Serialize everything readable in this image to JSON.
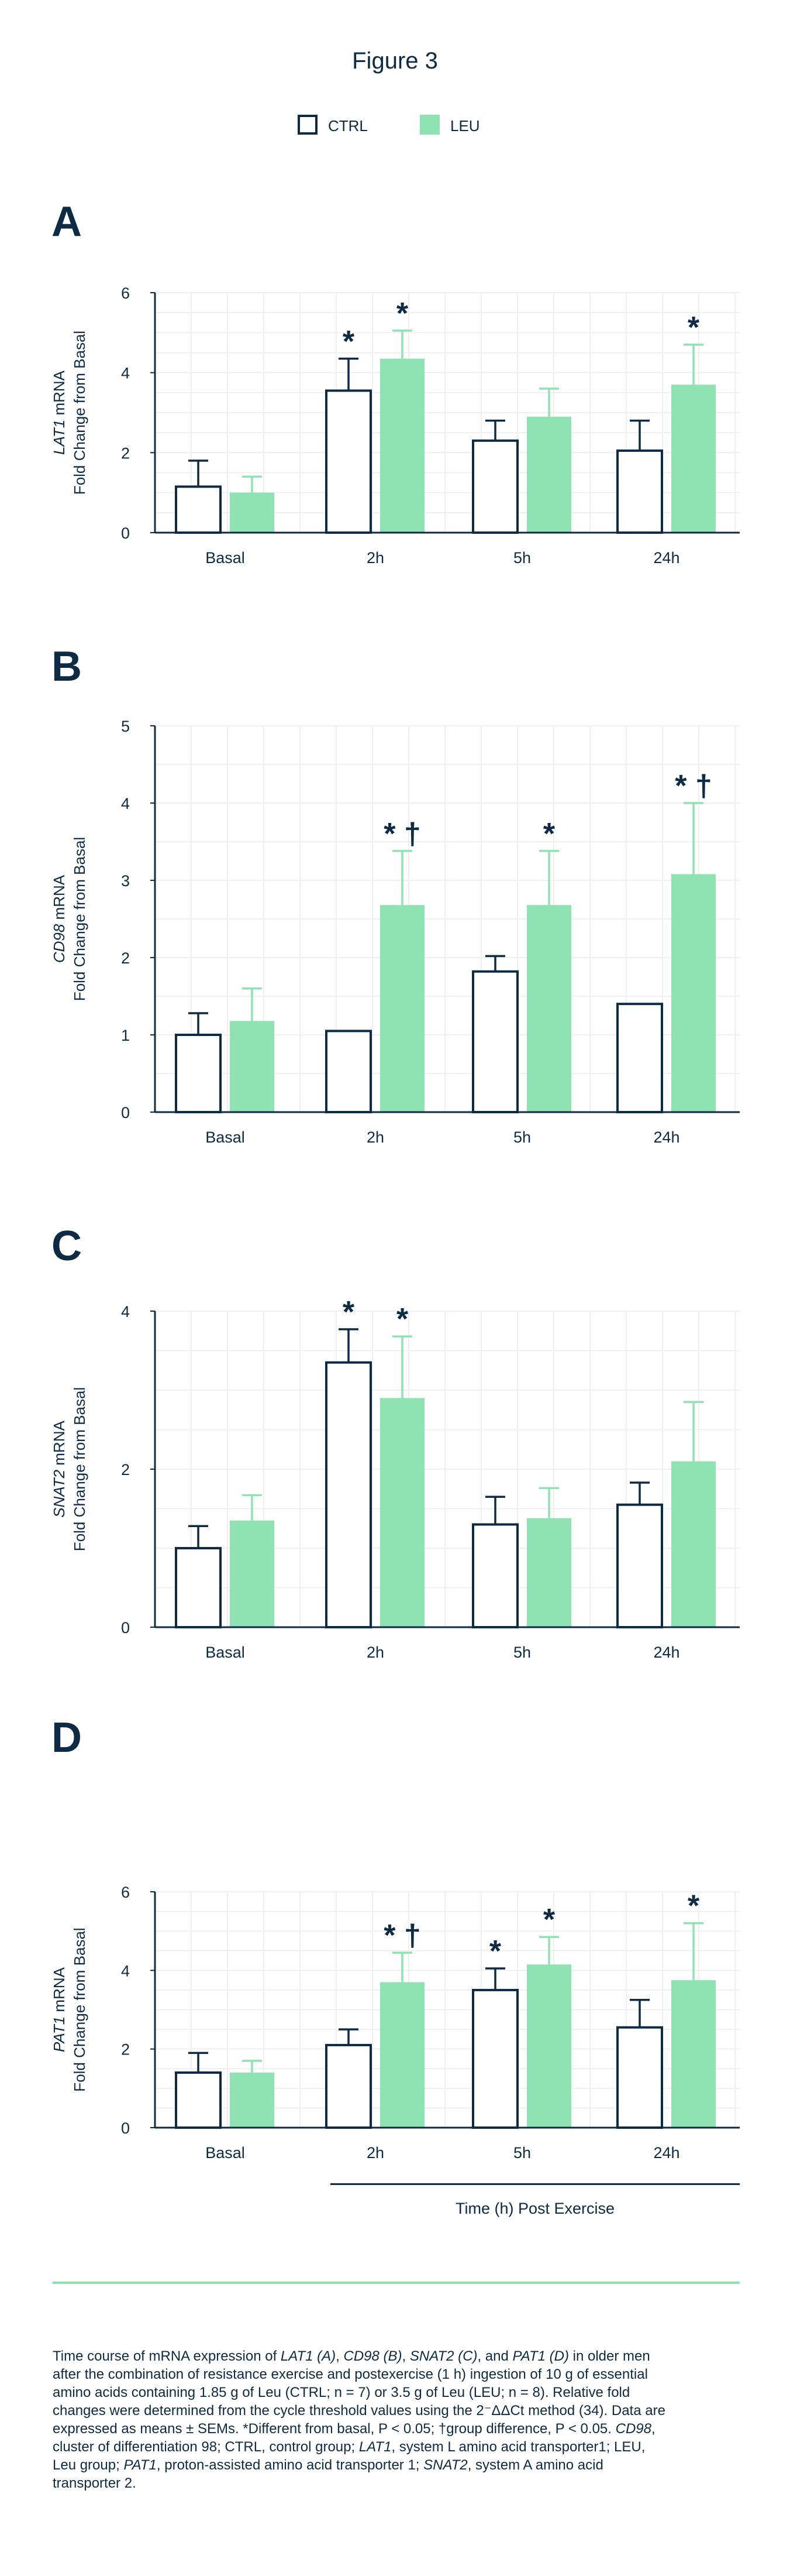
{
  "figure_title": "Figure 3",
  "colors": {
    "ctrl_fill": "#ffffff",
    "ctrl_stroke": "#0d2b45",
    "leu_fill": "#8fe3b2",
    "leu_error": "#8fe3b2",
    "text": "#0d2b45",
    "grid": "#ececec"
  },
  "legend": {
    "ctrl": "CTRL",
    "leu": "LEU"
  },
  "x_axis_title": "Time (h) Post Exercise",
  "caption": {
    "lines": [
      "Time course of mRNA expression of LAT1 (A), CD98 (B), SNAT2 (C), and PAT1 (D) in older men",
      "after the combination of resistance exercise and postexercise (1 h) ingestion of 10 g of essential",
      "amino acids containing 1.85 g of Leu (CTRL; n = 7) or 3.5 g of Leu (LEU; n = 8). Relative fold",
      "changes were determined from the cycle threshold values using the 2⁻ΔΔCt method (34). Data are",
      "expressed as means ± SEMs. *Different from basal, P < 0.05; †group difference, P < 0.05. CD98,",
      "cluster of differentiation 98; CTRL, control group; LAT1, system L amino acid transporter1; LEU,",
      "Leu group; PAT1, proton-assisted amino acid transporter 1; SNAT2, system A amino acid",
      "transporter 2."
    ]
  },
  "chart_data": [
    {
      "panel": "A",
      "type": "bar",
      "gene": "LAT1",
      "ylabel_suffix": " mRNA",
      "ylabel2": "Fold Change from Basal",
      "categories": [
        "Basal",
        "2h",
        "5h",
        "24h"
      ],
      "ylim": [
        0,
        6
      ],
      "yticks": [
        0,
        2,
        4,
        6
      ],
      "grid": true,
      "series": [
        {
          "name": "CTRL",
          "values": [
            1.15,
            3.55,
            2.3,
            2.05
          ],
          "errors": [
            0.65,
            0.8,
            0.5,
            0.75
          ],
          "annotations": [
            "",
            "*",
            "",
            ""
          ]
        },
        {
          "name": "LEU",
          "values": [
            1.0,
            4.35,
            2.9,
            3.7
          ],
          "errors": [
            0.4,
            0.7,
            0.7,
            1.0
          ],
          "annotations": [
            "",
            "*",
            "",
            "*"
          ]
        }
      ]
    },
    {
      "panel": "B",
      "type": "bar",
      "gene": "CD98",
      "ylabel_suffix": " mRNA",
      "ylabel2": "Fold Change from Basal",
      "categories": [
        "Basal",
        "2h",
        "5h",
        "24h"
      ],
      "ylim": [
        0,
        5
      ],
      "yticks": [
        0,
        1,
        2,
        3,
        4,
        5
      ],
      "grid": true,
      "series": [
        {
          "name": "CTRL",
          "values": [
            1.0,
            1.05,
            1.82,
            1.4
          ],
          "errors": [
            0.28,
            0.0,
            0.2,
            0.0
          ],
          "annotations": [
            "",
            "",
            "",
            ""
          ]
        },
        {
          "name": "LEU",
          "values": [
            1.18,
            2.68,
            2.68,
            3.08
          ],
          "errors": [
            0.42,
            0.7,
            0.7,
            0.92
          ],
          "annotations": [
            "",
            "* †",
            "*",
            "* †"
          ]
        }
      ]
    },
    {
      "panel": "C",
      "type": "bar",
      "gene": "SNAT2",
      "ylabel_suffix": " mRNA",
      "ylabel2": "Fold Change from Basal",
      "categories": [
        "Basal",
        "2h",
        "5h",
        "24h"
      ],
      "ylim": [
        0,
        4
      ],
      "yticks": [
        0,
        2,
        4
      ],
      "grid": true,
      "series": [
        {
          "name": "CTRL",
          "values": [
            1.0,
            3.35,
            1.3,
            1.55
          ],
          "errors": [
            0.28,
            0.42,
            0.35,
            0.28
          ],
          "annotations": [
            "",
            "*",
            "",
            ""
          ]
        },
        {
          "name": "LEU",
          "values": [
            1.35,
            2.9,
            1.38,
            2.1
          ],
          "errors": [
            0.32,
            0.78,
            0.38,
            0.75
          ],
          "annotations": [
            "",
            "*",
            "",
            ""
          ]
        }
      ]
    },
    {
      "panel": "D",
      "type": "bar",
      "gene": "PAT1",
      "ylabel_suffix": " mRNA",
      "ylabel2": "Fold Change from Basal",
      "categories": [
        "Basal",
        "2h",
        "5h",
        "24h"
      ],
      "ylim": [
        0,
        6
      ],
      "yticks": [
        0,
        2,
        4,
        6
      ],
      "grid": true,
      "series": [
        {
          "name": "CTRL",
          "values": [
            1.4,
            2.1,
            3.5,
            2.55
          ],
          "errors": [
            0.5,
            0.4,
            0.55,
            0.7
          ],
          "annotations": [
            "",
            "",
            "*",
            ""
          ]
        },
        {
          "name": "LEU",
          "values": [
            1.4,
            3.7,
            4.15,
            3.75
          ],
          "errors": [
            0.3,
            0.75,
            0.7,
            1.45
          ],
          "annotations": [
            "",
            "* †",
            "*",
            "*"
          ]
        }
      ]
    }
  ]
}
